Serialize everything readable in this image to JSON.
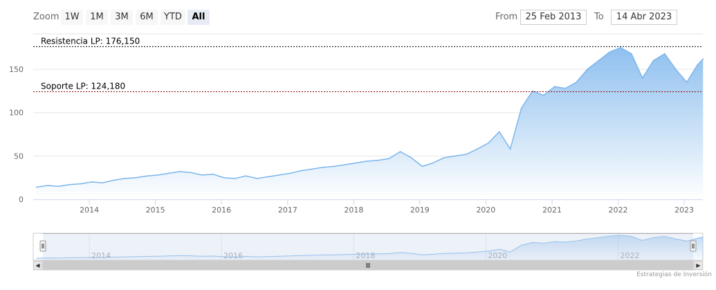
{
  "toolbar": {
    "zoom_label": "Zoom",
    "buttons": [
      "1W",
      "1M",
      "3M",
      "6M",
      "YTD",
      "All"
    ],
    "active": "All",
    "from_label": "From",
    "from_value": "25 Feb 2013",
    "to_label": "To",
    "to_value": "14 Abr 2023"
  },
  "credits": "Estrategias de Inversión",
  "colors": {
    "series_line": "#7cb5ec",
    "area_top": "#7cb5ec",
    "area_bottom": "#ffffff",
    "resistance_line": "#000000",
    "support_line": "#8b0000",
    "navigator_mask": "#ccd6eb"
  },
  "chart_data": {
    "type": "area",
    "title": "",
    "xlabel": "",
    "ylabel": "",
    "xlim": [
      "2013-02-25",
      "2023-04-14"
    ],
    "ylim": [
      0,
      190
    ],
    "grid": true,
    "y_ticks": [
      0,
      50,
      100,
      150
    ],
    "x_ticks": [
      "2014",
      "2015",
      "2016",
      "2017",
      "2018",
      "2019",
      "2020",
      "2021",
      "2022",
      "2023"
    ],
    "plot_lines": [
      {
        "label": "Resistencia LP: 176,150",
        "value": 176.15,
        "style": "dashed"
      },
      {
        "label": "Soporte LP: 124,180",
        "value": 124.18,
        "style": "dashed"
      }
    ],
    "series": [
      {
        "x": [
          "2013-03",
          "2013-05",
          "2013-07",
          "2013-09",
          "2013-11",
          "2014-01",
          "2014-03",
          "2014-05",
          "2014-07",
          "2014-09",
          "2014-11",
          "2015-01",
          "2015-03",
          "2015-05",
          "2015-07",
          "2015-09",
          "2015-11",
          "2016-01",
          "2016-03",
          "2016-05",
          "2016-07",
          "2016-09",
          "2016-11",
          "2017-01",
          "2017-03",
          "2017-05",
          "2017-07",
          "2017-09",
          "2017-11",
          "2018-01",
          "2018-03",
          "2018-05",
          "2018-07",
          "2018-09",
          "2018-11",
          "2019-01",
          "2019-03",
          "2019-05",
          "2019-07",
          "2019-09",
          "2019-11",
          "2020-01",
          "2020-03",
          "2020-05",
          "2020-07",
          "2020-09",
          "2020-11",
          "2021-01",
          "2021-03",
          "2021-05",
          "2021-07",
          "2021-09",
          "2021-11",
          "2022-01",
          "2022-03",
          "2022-05",
          "2022-07",
          "2022-09",
          "2022-11",
          "2023-01",
          "2023-03",
          "2023-04"
        ],
        "y": [
          14,
          16,
          15,
          17,
          18,
          20,
          19,
          22,
          24,
          25,
          27,
          28,
          30,
          32,
          31,
          28,
          29,
          25,
          24,
          27,
          24,
          26,
          28,
          30,
          33,
          35,
          37,
          38,
          40,
          42,
          44,
          45,
          47,
          55,
          48,
          38,
          42,
          48,
          50,
          52,
          58,
          65,
          78,
          58,
          105,
          125,
          120,
          130,
          128,
          135,
          150,
          160,
          170,
          175,
          168,
          140,
          160,
          168,
          150,
          135,
          155,
          162
        ]
      }
    ],
    "navigator": {
      "x_ticks": [
        "2014",
        "2016",
        "2018",
        "2020",
        "2022"
      ]
    }
  }
}
